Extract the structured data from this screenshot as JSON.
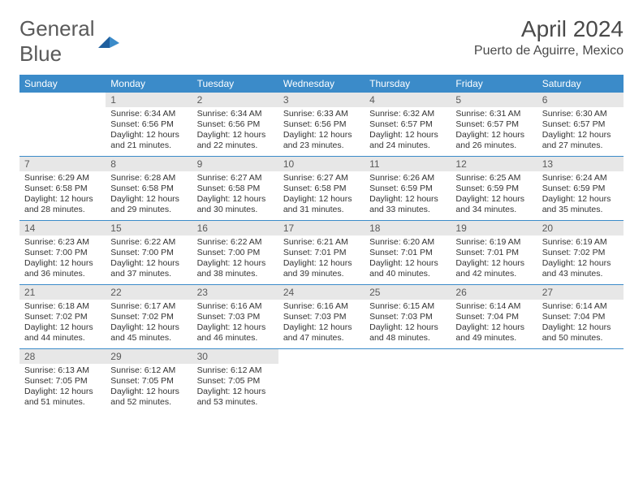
{
  "logo": {
    "general": "General",
    "blue": "Blue"
  },
  "title": "April 2024",
  "location": "Puerto de Aguirre, Mexico",
  "colors": {
    "header_bg": "#3b8bc9",
    "header_text": "#ffffff",
    "daynum_bg": "#e7e7e7",
    "daynum_text": "#5a5a5a",
    "body_text": "#333333",
    "divider": "#3b8bc9"
  },
  "dayNames": [
    "Sunday",
    "Monday",
    "Tuesday",
    "Wednesday",
    "Thursday",
    "Friday",
    "Saturday"
  ],
  "weeks": [
    [
      {
        "num": "",
        "sunrise": "",
        "sunset": "",
        "daylight": ""
      },
      {
        "num": "1",
        "sunrise": "Sunrise: 6:34 AM",
        "sunset": "Sunset: 6:56 PM",
        "daylight": "Daylight: 12 hours and 21 minutes."
      },
      {
        "num": "2",
        "sunrise": "Sunrise: 6:34 AM",
        "sunset": "Sunset: 6:56 PM",
        "daylight": "Daylight: 12 hours and 22 minutes."
      },
      {
        "num": "3",
        "sunrise": "Sunrise: 6:33 AM",
        "sunset": "Sunset: 6:56 PM",
        "daylight": "Daylight: 12 hours and 23 minutes."
      },
      {
        "num": "4",
        "sunrise": "Sunrise: 6:32 AM",
        "sunset": "Sunset: 6:57 PM",
        "daylight": "Daylight: 12 hours and 24 minutes."
      },
      {
        "num": "5",
        "sunrise": "Sunrise: 6:31 AM",
        "sunset": "Sunset: 6:57 PM",
        "daylight": "Daylight: 12 hours and 26 minutes."
      },
      {
        "num": "6",
        "sunrise": "Sunrise: 6:30 AM",
        "sunset": "Sunset: 6:57 PM",
        "daylight": "Daylight: 12 hours and 27 minutes."
      }
    ],
    [
      {
        "num": "7",
        "sunrise": "Sunrise: 6:29 AM",
        "sunset": "Sunset: 6:58 PM",
        "daylight": "Daylight: 12 hours and 28 minutes."
      },
      {
        "num": "8",
        "sunrise": "Sunrise: 6:28 AM",
        "sunset": "Sunset: 6:58 PM",
        "daylight": "Daylight: 12 hours and 29 minutes."
      },
      {
        "num": "9",
        "sunrise": "Sunrise: 6:27 AM",
        "sunset": "Sunset: 6:58 PM",
        "daylight": "Daylight: 12 hours and 30 minutes."
      },
      {
        "num": "10",
        "sunrise": "Sunrise: 6:27 AM",
        "sunset": "Sunset: 6:58 PM",
        "daylight": "Daylight: 12 hours and 31 minutes."
      },
      {
        "num": "11",
        "sunrise": "Sunrise: 6:26 AM",
        "sunset": "Sunset: 6:59 PM",
        "daylight": "Daylight: 12 hours and 33 minutes."
      },
      {
        "num": "12",
        "sunrise": "Sunrise: 6:25 AM",
        "sunset": "Sunset: 6:59 PM",
        "daylight": "Daylight: 12 hours and 34 minutes."
      },
      {
        "num": "13",
        "sunrise": "Sunrise: 6:24 AM",
        "sunset": "Sunset: 6:59 PM",
        "daylight": "Daylight: 12 hours and 35 minutes."
      }
    ],
    [
      {
        "num": "14",
        "sunrise": "Sunrise: 6:23 AM",
        "sunset": "Sunset: 7:00 PM",
        "daylight": "Daylight: 12 hours and 36 minutes."
      },
      {
        "num": "15",
        "sunrise": "Sunrise: 6:22 AM",
        "sunset": "Sunset: 7:00 PM",
        "daylight": "Daylight: 12 hours and 37 minutes."
      },
      {
        "num": "16",
        "sunrise": "Sunrise: 6:22 AM",
        "sunset": "Sunset: 7:00 PM",
        "daylight": "Daylight: 12 hours and 38 minutes."
      },
      {
        "num": "17",
        "sunrise": "Sunrise: 6:21 AM",
        "sunset": "Sunset: 7:01 PM",
        "daylight": "Daylight: 12 hours and 39 minutes."
      },
      {
        "num": "18",
        "sunrise": "Sunrise: 6:20 AM",
        "sunset": "Sunset: 7:01 PM",
        "daylight": "Daylight: 12 hours and 40 minutes."
      },
      {
        "num": "19",
        "sunrise": "Sunrise: 6:19 AM",
        "sunset": "Sunset: 7:01 PM",
        "daylight": "Daylight: 12 hours and 42 minutes."
      },
      {
        "num": "20",
        "sunrise": "Sunrise: 6:19 AM",
        "sunset": "Sunset: 7:02 PM",
        "daylight": "Daylight: 12 hours and 43 minutes."
      }
    ],
    [
      {
        "num": "21",
        "sunrise": "Sunrise: 6:18 AM",
        "sunset": "Sunset: 7:02 PM",
        "daylight": "Daylight: 12 hours and 44 minutes."
      },
      {
        "num": "22",
        "sunrise": "Sunrise: 6:17 AM",
        "sunset": "Sunset: 7:02 PM",
        "daylight": "Daylight: 12 hours and 45 minutes."
      },
      {
        "num": "23",
        "sunrise": "Sunrise: 6:16 AM",
        "sunset": "Sunset: 7:03 PM",
        "daylight": "Daylight: 12 hours and 46 minutes."
      },
      {
        "num": "24",
        "sunrise": "Sunrise: 6:16 AM",
        "sunset": "Sunset: 7:03 PM",
        "daylight": "Daylight: 12 hours and 47 minutes."
      },
      {
        "num": "25",
        "sunrise": "Sunrise: 6:15 AM",
        "sunset": "Sunset: 7:03 PM",
        "daylight": "Daylight: 12 hours and 48 minutes."
      },
      {
        "num": "26",
        "sunrise": "Sunrise: 6:14 AM",
        "sunset": "Sunset: 7:04 PM",
        "daylight": "Daylight: 12 hours and 49 minutes."
      },
      {
        "num": "27",
        "sunrise": "Sunrise: 6:14 AM",
        "sunset": "Sunset: 7:04 PM",
        "daylight": "Daylight: 12 hours and 50 minutes."
      }
    ],
    [
      {
        "num": "28",
        "sunrise": "Sunrise: 6:13 AM",
        "sunset": "Sunset: 7:05 PM",
        "daylight": "Daylight: 12 hours and 51 minutes."
      },
      {
        "num": "29",
        "sunrise": "Sunrise: 6:12 AM",
        "sunset": "Sunset: 7:05 PM",
        "daylight": "Daylight: 12 hours and 52 minutes."
      },
      {
        "num": "30",
        "sunrise": "Sunrise: 6:12 AM",
        "sunset": "Sunset: 7:05 PM",
        "daylight": "Daylight: 12 hours and 53 minutes."
      },
      {
        "num": "",
        "sunrise": "",
        "sunset": "",
        "daylight": ""
      },
      {
        "num": "",
        "sunrise": "",
        "sunset": "",
        "daylight": ""
      },
      {
        "num": "",
        "sunrise": "",
        "sunset": "",
        "daylight": ""
      },
      {
        "num": "",
        "sunrise": "",
        "sunset": "",
        "daylight": ""
      }
    ]
  ]
}
